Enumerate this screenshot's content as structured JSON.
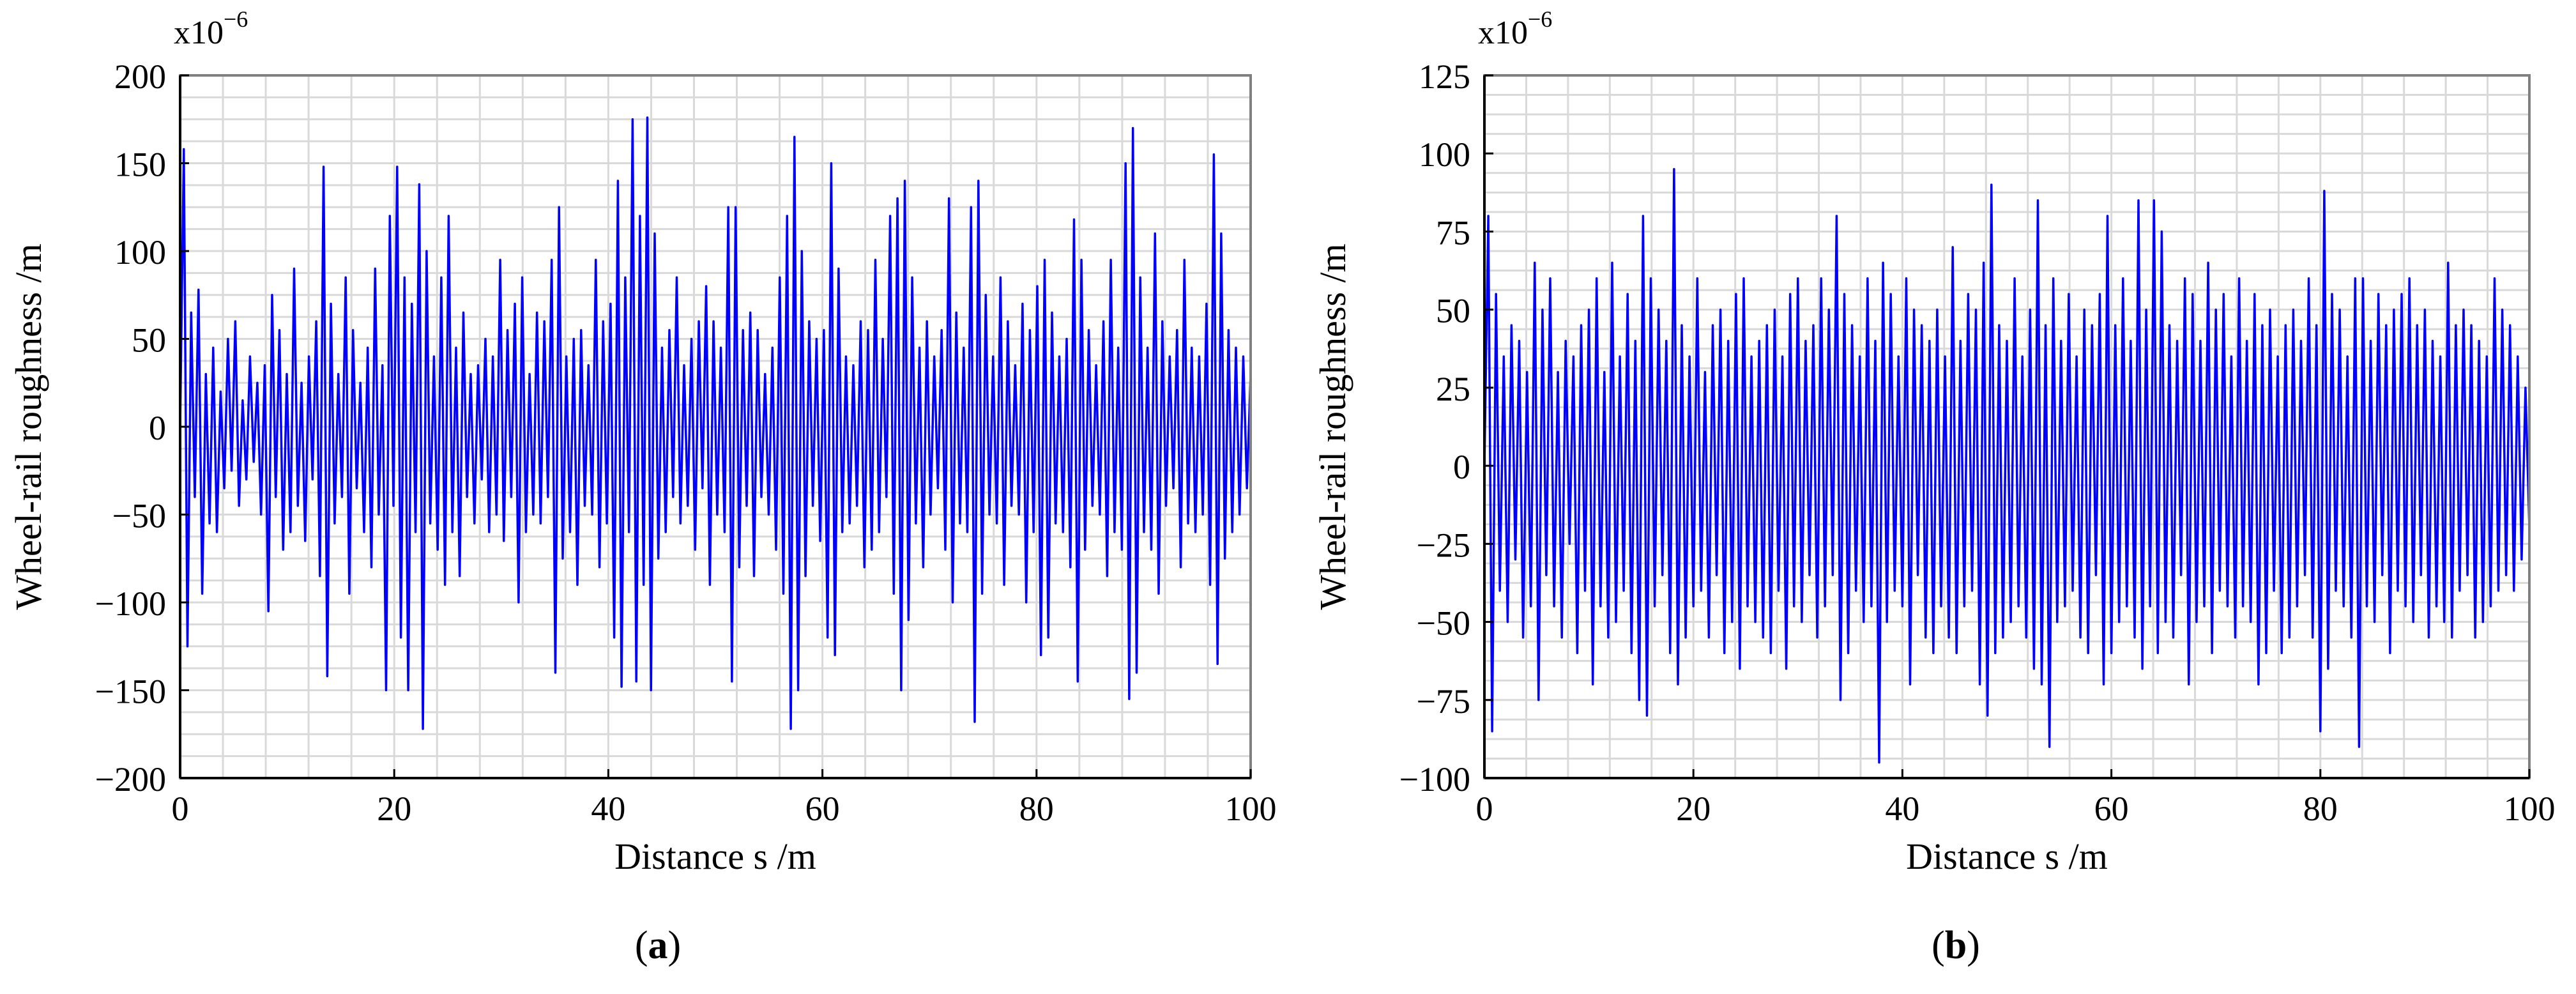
{
  "colors": {
    "series": "#0000ff",
    "grid": "#d9d9d9",
    "axis": "#000000"
  },
  "captions": [
    {
      "open": "(",
      "letter": "a",
      "close": ")"
    },
    {
      "open": "(",
      "letter": "b",
      "close": ")"
    }
  ],
  "chart_data": [
    {
      "type": "line",
      "xlabel": "Distance s /m",
      "ylabel": "Wheel-rail roughness /m",
      "scale_label": "x10",
      "scale_exp": "−6",
      "xlim": [
        0,
        100
      ],
      "ylim": [
        -200,
        200
      ],
      "xticks": [
        "0",
        "20",
        "40",
        "60",
        "80",
        "100"
      ],
      "yticks": [
        "200",
        "150",
        "100",
        "50",
        "0",
        "−50",
        "−100",
        "−150",
        "−200"
      ],
      "grid": true,
      "x_step": 0.25,
      "series": [
        {
          "values": [
            0,
            158,
            -125,
            65,
            -40,
            78,
            -95,
            30,
            -55,
            45,
            -60,
            20,
            -35,
            50,
            -25,
            60,
            -45,
            15,
            -30,
            40,
            -20,
            25,
            -50,
            35,
            -105,
            75,
            -40,
            55,
            -70,
            30,
            -60,
            90,
            -45,
            25,
            -65,
            40,
            -30,
            60,
            -85,
            148,
            -142,
            70,
            -55,
            30,
            -40,
            85,
            -95,
            55,
            -35,
            25,
            -60,
            45,
            -80,
            90,
            -50,
            35,
            -150,
            120,
            -45,
            148,
            -120,
            85,
            -150,
            70,
            -60,
            138,
            -172,
            100,
            -55,
            40,
            -70,
            85,
            -90,
            120,
            -60,
            45,
            -85,
            65,
            -40,
            30,
            -55,
            35,
            -30,
            50,
            -60,
            40,
            -50,
            95,
            -65,
            55,
            -40,
            70,
            -100,
            85,
            -60,
            30,
            -50,
            65,
            -55,
            60,
            -40,
            95,
            -140,
            125,
            -75,
            40,
            -60,
            50,
            -90,
            55,
            -45,
            35,
            -50,
            95,
            -80,
            60,
            -55,
            70,
            -120,
            140,
            -148,
            85,
            -60,
            175,
            -145,
            120,
            -90,
            176,
            -150,
            110,
            -75,
            45,
            -60,
            55,
            -40,
            85,
            -55,
            35,
            -45,
            50,
            -70,
            60,
            -35,
            80,
            -90,
            60,
            -50,
            45,
            -60,
            125,
            -145,
            125,
            -80,
            55,
            -45,
            65,
            -85,
            55,
            -40,
            30,
            -50,
            45,
            -70,
            85,
            -95,
            120,
            -172,
            165,
            -150,
            100,
            -85,
            60,
            -45,
            50,
            -65,
            55,
            -120,
            150,
            -130,
            90,
            -60,
            40,
            -55,
            35,
            -45,
            60,
            -80,
            55,
            -70,
            95,
            -60,
            50,
            -40,
            120,
            -95,
            130,
            -150,
            140,
            -110,
            85,
            -55,
            45,
            -80,
            60,
            -50,
            40,
            -35,
            55,
            -70,
            130,
            -100,
            65,
            -55,
            45,
            -60,
            125,
            -168,
            140,
            -95,
            75,
            -50,
            40,
            -55,
            85,
            -90,
            60,
            -45,
            35,
            -50,
            70,
            -100,
            55,
            -60,
            80,
            -130,
            95,
            -120,
            65,
            -55,
            40,
            -60,
            50,
            -80,
            118,
            -145,
            95,
            -70,
            55,
            -45,
            35,
            -50,
            60,
            -85,
            95,
            -60,
            45,
            -70,
            150,
            -155,
            170,
            -140,
            85,
            -60,
            45,
            -70,
            110,
            -95,
            60,
            -45,
            40,
            -35,
            55,
            -80,
            95,
            -55,
            45,
            -60,
            40,
            -50,
            70,
            -90,
            155,
            -135,
            110,
            -75,
            55,
            -60,
            45,
            -50,
            40,
            -35,
            30
          ]
        }
      ]
    },
    {
      "type": "line",
      "xlabel": "Distance s /m",
      "ylabel": "Wheel-rail roughness /m",
      "scale_label": "x10",
      "scale_exp": "−6",
      "xlim": [
        0,
        100
      ],
      "ylim": [
        -100,
        125
      ],
      "xticks": [
        "0",
        "20",
        "40",
        "60",
        "80",
        "100"
      ],
      "yticks": [
        "125",
        "100",
        "75",
        "50",
        "25",
        "0",
        "−25",
        "−50",
        "−75",
        "−100"
      ],
      "grid": true,
      "x_step": 0.25,
      "series": [
        {
          "values": [
            0,
            80,
            -85,
            55,
            -40,
            35,
            -50,
            45,
            -30,
            40,
            -55,
            30,
            -45,
            65,
            -75,
            50,
            -35,
            60,
            -45,
            30,
            -55,
            40,
            -25,
            35,
            -60,
            45,
            -40,
            50,
            -70,
            60,
            -45,
            30,
            -55,
            65,
            -50,
            35,
            -40,
            55,
            -60,
            40,
            -75,
            80,
            -80,
            60,
            -45,
            50,
            -35,
            40,
            -60,
            95,
            -70,
            45,
            -55,
            35,
            -45,
            60,
            -40,
            30,
            -55,
            45,
            -35,
            50,
            -60,
            40,
            -50,
            55,
            -65,
            60,
            -45,
            35,
            -50,
            40,
            -55,
            45,
            -60,
            50,
            -40,
            35,
            -65,
            55,
            -45,
            60,
            -50,
            40,
            -35,
            45,
            -55,
            60,
            -45,
            50,
            -35,
            80,
            -75,
            55,
            -60,
            45,
            -40,
            35,
            -50,
            60,
            -45,
            40,
            -95,
            65,
            -50,
            55,
            -40,
            35,
            -45,
            60,
            -70,
            50,
            -35,
            45,
            -55,
            40,
            -60,
            50,
            -45,
            35,
            -55,
            70,
            -60,
            40,
            -45,
            55,
            -40,
            50,
            -70,
            65,
            -80,
            90,
            -60,
            45,
            -55,
            40,
            -50,
            60,
            -45,
            35,
            -55,
            50,
            -65,
            85,
            -70,
            45,
            -90,
            60,
            -50,
            40,
            -45,
            55,
            -40,
            35,
            -55,
            50,
            -60,
            45,
            -35,
            55,
            -70,
            80,
            -60,
            45,
            -50,
            60,
            -45,
            40,
            -55,
            85,
            -65,
            50,
            -45,
            85,
            -60,
            75,
            -50,
            45,
            -55,
            40,
            -35,
            60,
            -70,
            55,
            -50,
            40,
            -45,
            65,
            -60,
            50,
            -40,
            55,
            -45,
            35,
            -55,
            60,
            -45,
            40,
            -50,
            55,
            -70,
            45,
            -60,
            50,
            -40,
            35,
            -60,
            45,
            -55,
            50,
            -45,
            40,
            -35,
            60,
            -55,
            45,
            -85,
            88,
            -65,
            55,
            -40,
            50,
            -45,
            35,
            -55,
            60,
            -90,
            60,
            -45,
            40,
            -50,
            55,
            -35,
            45,
            -60,
            50,
            -40,
            55,
            -45,
            60,
            -50,
            45,
            -35,
            50,
            -55,
            40,
            -45,
            35,
            -50,
            65,
            -55,
            45,
            -40,
            50,
            -35,
            45,
            -55,
            40,
            -50,
            35,
            -45,
            60,
            -40,
            50,
            -35,
            45,
            -40,
            35,
            -30,
            25,
            -20
          ]
        }
      ]
    }
  ]
}
